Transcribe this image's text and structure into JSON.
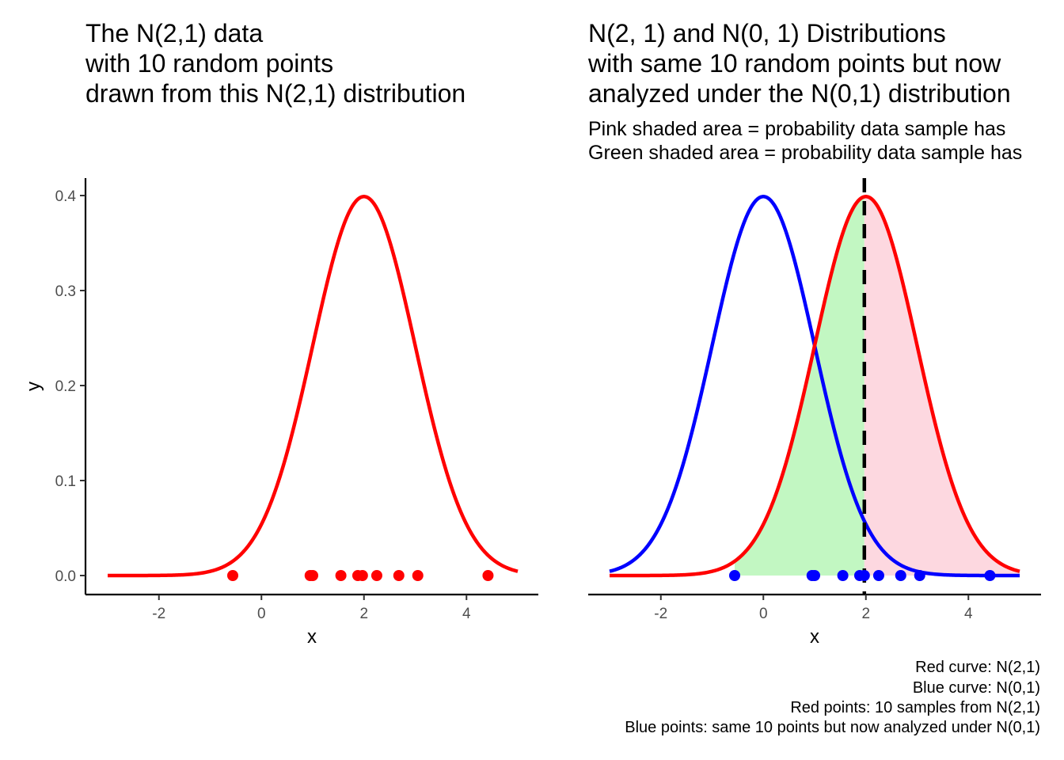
{
  "chart_data": [
    {
      "type": "line",
      "title_lines": [
        "The N(2,1) data",
        "with 10 random points",
        "drawn from this N(2,1) distribution"
      ],
      "xlabel": "x",
      "ylabel": "y",
      "xlim": [
        -3,
        5
      ],
      "ylim": [
        0,
        0.4
      ],
      "x_ticks": [
        -2,
        0,
        2,
        4
      ],
      "x_tick_labels": [
        "-2",
        "0",
        "2",
        "4"
      ],
      "y_ticks": [
        0,
        0.1,
        0.2,
        0.3,
        0.4
      ],
      "y_tick_labels": [
        "0.0",
        "0.1",
        "0.2",
        "0.3",
        "0.4"
      ],
      "series": [
        {
          "distribution": "normal",
          "mean": 2,
          "sd": 1,
          "color": "#ff0000",
          "kind": "density-curve"
        }
      ],
      "points": {
        "color": "#ff0000",
        "y": 0,
        "x": [
          -0.56,
          0.95,
          1.0,
          1.55,
          1.88,
          1.97,
          2.25,
          2.68,
          3.05,
          4.42
        ]
      },
      "grid": false
    },
    {
      "type": "line",
      "title_lines": [
        "N(2, 1) and N(0, 1) Distributions",
        "with same 10 random points but now",
        "analyzed under the N(0,1)  distribution"
      ],
      "subtitle_lines": [
        "Pink shaded area = probability data sample has",
        "Green shaded area = probability data sample has"
      ],
      "xlabel": "x",
      "xlim": [
        -3,
        5
      ],
      "ylim": [
        0,
        0.4
      ],
      "x_ticks": [
        -2,
        0,
        2,
        4
      ],
      "x_tick_labels": [
        "-2",
        "0",
        "2",
        "4"
      ],
      "series": [
        {
          "distribution": "normal",
          "mean": 0,
          "sd": 1,
          "color": "#0000ff",
          "kind": "density-curve"
        },
        {
          "distribution": "normal",
          "mean": 2,
          "sd": 1,
          "color": "#ff0000",
          "kind": "density-curve"
        }
      ],
      "shading": [
        {
          "under": "N(2,1)",
          "from": -0.56,
          "to": 1.97,
          "color": "#c2f7c2"
        },
        {
          "under": "N(2,1)",
          "from": 1.97,
          "to": 5,
          "color": "#fdd8e0"
        }
      ],
      "vline": {
        "x": 1.97,
        "style": "dashed",
        "color": "#000000"
      },
      "points": {
        "color": "#0000ff",
        "y": 0,
        "x": [
          -0.56,
          0.95,
          1.0,
          1.55,
          1.88,
          1.97,
          2.25,
          2.68,
          3.05,
          4.42
        ]
      },
      "caption_lines": [
        "Red curve: N(2,1)",
        "Blue curve: N(0,1)",
        "Red points: 10 samples from N(2,1)",
        "Blue points: same 10 points but now analyzed under N(0,1)"
      ],
      "grid": false
    }
  ]
}
